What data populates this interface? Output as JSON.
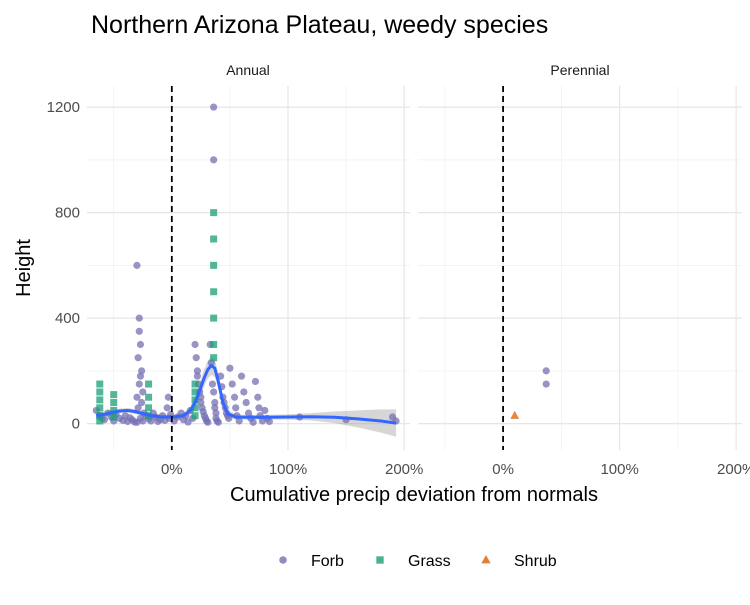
{
  "chart_data": {
    "type": "scatter",
    "title": "Northern Arizona Plateau, weedy species",
    "xlabel": "Cumulative precip deviation from normals",
    "ylabel": "Height",
    "x_unit": "%",
    "xlim": [
      -73,
      205
    ],
    "ylim": [
      -100,
      1280
    ],
    "x_ticks": [
      0,
      100,
      200
    ],
    "x_tick_labels": [
      "0%",
      "100%",
      "200%"
    ],
    "y_ticks": [
      0,
      400,
      800,
      1200
    ],
    "y_tick_labels": [
      "0",
      "400",
      "800",
      "1200"
    ],
    "reference_line_x": 0,
    "grid": true,
    "legend_position": "bottom",
    "legend": [
      {
        "name": "Forb",
        "color": "#7570b3",
        "shape": "circle"
      },
      {
        "name": "Grass",
        "color": "#1b9e77",
        "shape": "square"
      },
      {
        "name": "Shrub",
        "color": "#d95f02",
        "shape": "triangle"
      }
    ],
    "facets": [
      {
        "label": "Annual",
        "series": [
          {
            "name": "Forb",
            "points": [
              [
                -30,
                600
              ],
              [
                -28,
                400
              ],
              [
                -28,
                350
              ],
              [
                -27,
                300
              ],
              [
                -29,
                250
              ],
              [
                -26,
                200
              ],
              [
                -27,
                180
              ],
              [
                -28,
                150
              ],
              [
                -25,
                120
              ],
              [
                -30,
                100
              ],
              [
                -26,
                80
              ],
              [
                -29,
                60
              ],
              [
                -24,
                40
              ],
              [
                -27,
                20
              ],
              [
                -25,
                10
              ],
              [
                -30,
                5
              ],
              [
                -65,
                50
              ],
              [
                -62,
                30
              ],
              [
                -60,
                20
              ],
              [
                -58,
                15
              ],
              [
                -55,
                40
              ],
              [
                -52,
                25
              ],
              [
                -50,
                10
              ],
              [
                -48,
                35
              ],
              [
                -45,
                20
              ],
              [
                -42,
                12
              ],
              [
                -40,
                30
              ],
              [
                -38,
                8
              ],
              [
                -36,
                22
              ],
              [
                -34,
                14
              ],
              [
                -32,
                6
              ],
              [
                -22,
                30
              ],
              [
                -20,
                18
              ],
              [
                -18,
                10
              ],
              [
                -16,
                40
              ],
              [
                -14,
                25
              ],
              [
                -12,
                8
              ],
              [
                -10,
                15
              ],
              [
                -8,
                30
              ],
              [
                -6,
                12
              ],
              [
                -4,
                60
              ],
              [
                -3,
                100
              ],
              [
                -2,
                20
              ],
              [
                -1,
                35
              ],
              [
                2,
                10
              ],
              [
                5,
                25
              ],
              [
                8,
                40
              ],
              [
                10,
                15
              ],
              [
                12,
                30
              ],
              [
                14,
                6
              ],
              [
                16,
                50
              ],
              [
                18,
                20
              ],
              [
                20,
                300
              ],
              [
                21,
                250
              ],
              [
                22,
                200
              ],
              [
                22,
                180
              ],
              [
                23,
                150
              ],
              [
                24,
                120
              ],
              [
                25,
                100
              ],
              [
                25,
                80
              ],
              [
                26,
                60
              ],
              [
                27,
                45
              ],
              [
                28,
                30
              ],
              [
                29,
                20
              ],
              [
                30,
                10
              ],
              [
                31,
                5
              ],
              [
                33,
                300
              ],
              [
                34,
                230
              ],
              [
                35,
                150
              ],
              [
                36,
                1200
              ],
              [
                36,
                1000
              ],
              [
                36,
                120
              ],
              [
                37,
                80
              ],
              [
                37,
                60
              ],
              [
                38,
                40
              ],
              [
                38,
                20
              ],
              [
                39,
                10
              ],
              [
                40,
                5
              ],
              [
                42,
                180
              ],
              [
                43,
                140
              ],
              [
                44,
                100
              ],
              [
                45,
                80
              ],
              [
                46,
                60
              ],
              [
                47,
                40
              ],
              [
                48,
                30
              ],
              [
                49,
                20
              ],
              [
                50,
                210
              ],
              [
                52,
                150
              ],
              [
                54,
                100
              ],
              [
                55,
                60
              ],
              [
                56,
                30
              ],
              [
                58,
                10
              ],
              [
                60,
                180
              ],
              [
                62,
                120
              ],
              [
                64,
                80
              ],
              [
                66,
                40
              ],
              [
                68,
                20
              ],
              [
                70,
                5
              ],
              [
                72,
                160
              ],
              [
                74,
                100
              ],
              [
                75,
                60
              ],
              [
                76,
                30
              ],
              [
                78,
                10
              ],
              [
                80,
                50
              ],
              [
                82,
                20
              ],
              [
                84,
                8
              ],
              [
                110,
                25
              ],
              [
                150,
                15
              ],
              [
                190,
                25
              ],
              [
                193,
                10
              ]
            ]
          },
          {
            "name": "Grass",
            "points": [
              [
                -62,
                150
              ],
              [
                -62,
                120
              ],
              [
                -62,
                90
              ],
              [
                -62,
                60
              ],
              [
                -62,
                30
              ],
              [
                -62,
                10
              ],
              [
                -50,
                110
              ],
              [
                -50,
                80
              ],
              [
                -50,
                50
              ],
              [
                -50,
                25
              ],
              [
                -20,
                150
              ],
              [
                -20,
                100
              ],
              [
                -20,
                60
              ],
              [
                -20,
                30
              ],
              [
                20,
                150
              ],
              [
                20,
                120
              ],
              [
                20,
                90
              ],
              [
                20,
                60
              ],
              [
                20,
                30
              ],
              [
                36,
                800
              ],
              [
                36,
                700
              ],
              [
                36,
                600
              ],
              [
                36,
                500
              ],
              [
                36,
                400
              ],
              [
                36,
                300
              ],
              [
                36,
                250
              ]
            ]
          },
          {
            "name": "Shrub",
            "points": []
          }
        ],
        "smooth": {
          "x": [
            -65,
            -58,
            -52,
            -45,
            -38,
            -32,
            -25,
            -18,
            -10,
            -3,
            3,
            10,
            16,
            20,
            24,
            28,
            31,
            34,
            37,
            40,
            44,
            48,
            55,
            65,
            80,
            100,
            120,
            140,
            160,
            180,
            193
          ],
          "y": [
            30,
            35,
            42,
            48,
            50,
            46,
            38,
            30,
            26,
            25,
            26,
            30,
            50,
            80,
            125,
            175,
            205,
            220,
            210,
            160,
            80,
            38,
            25,
            24,
            24,
            25,
            26,
            24,
            18,
            10,
            2
          ],
          "band_half_width": [
            15,
            12,
            10,
            9,
            9,
            9,
            9,
            9,
            9,
            9,
            9,
            10,
            15,
            22,
            28,
            32,
            34,
            35,
            34,
            30,
            22,
            14,
            10,
            9,
            9,
            10,
            14,
            22,
            32,
            44,
            52
          ]
        }
      },
      {
        "label": "Perennial",
        "series": [
          {
            "name": "Forb",
            "points": [
              [
                37,
                200
              ],
              [
                37,
                150
              ]
            ]
          },
          {
            "name": "Grass",
            "points": []
          },
          {
            "name": "Shrub",
            "points": [
              [
                10,
                30
              ]
            ]
          }
        ]
      }
    ]
  }
}
